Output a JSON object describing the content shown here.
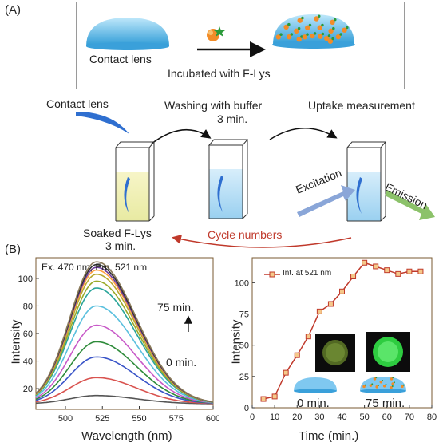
{
  "panel_a": {
    "label": "(A)",
    "contact_lens_label": "Contact lens",
    "incubated_label": "Incubated with F-Lys",
    "contact_lens_label_2": "Contact lens",
    "washing_label": "Washing with buffer",
    "washing_time": "3 min.",
    "uptake_label": "Uptake measurement",
    "soaked_label": "Soaked F-Lys",
    "soaked_time": "3 min.",
    "excitation_label": "Excitation",
    "emission_label": "Emission",
    "cycle_label": "Cycle numbers"
  },
  "panel_b": {
    "label": "(B)",
    "spectra_annotation": "Ex. 470 nm, Em. 521 nm",
    "arrow_top_label": "75 min.",
    "arrow_bottom_label": "0 min.",
    "inset_left_label": "0 min.",
    "inset_right_label": "75 min.",
    "colors": {
      "series_line": "#c0392b",
      "marker_fill": "#f5c88a",
      "glow_dark": "#5f7a28",
      "glow_bright": "#2ecc40",
      "cycle_arrow": "#c0392b"
    }
  },
  "chart_data": [
    {
      "type": "line",
      "xlabel": "Wavelength (nm)",
      "ylabel": "Intensity",
      "xlim": [
        480,
        600
      ],
      "ylim": [
        5,
        115
      ],
      "xticks": [
        500,
        525,
        550,
        575,
        600
      ],
      "yticks": [
        20,
        40,
        60,
        80,
        100
      ],
      "peak_x": 521,
      "series": [
        {
          "values_peak": 15,
          "color": "#555555"
        },
        {
          "values_peak": 28,
          "color": "#d9534f"
        },
        {
          "values_peak": 43,
          "color": "#3a55c8"
        },
        {
          "values_peak": 54,
          "color": "#2e8b3a"
        },
        {
          "values_peak": 66,
          "color": "#c85ac8"
        },
        {
          "values_peak": 80,
          "color": "#5bc0de"
        },
        {
          "values_peak": 93,
          "color": "#2aa59a"
        },
        {
          "values_peak": 98,
          "color": "#9aaa2a"
        },
        {
          "values_peak": 103,
          "color": "#b8a830"
        },
        {
          "values_peak": 106,
          "color": "#ffa040"
        },
        {
          "values_peak": 108,
          "color": "#6b3a9a"
        },
        {
          "values_peak": 110,
          "color": "#303030"
        },
        {
          "values_peak": 112,
          "color": "#8a7a5a"
        }
      ]
    },
    {
      "type": "line",
      "xlabel": "Time (min.)",
      "ylabel": "Intensity",
      "xlim": [
        0,
        80
      ],
      "ylim": [
        0,
        120
      ],
      "xticks": [
        0,
        10,
        20,
        30,
        40,
        50,
        60,
        70,
        80
      ],
      "yticks": [
        0,
        25,
        50,
        75,
        100
      ],
      "series": [
        {
          "name": "Int. at 521 nm",
          "x": [
            5,
            10,
            15,
            20,
            25,
            30,
            35,
            40,
            45,
            50,
            55,
            60,
            65,
            70,
            75
          ],
          "y": [
            7,
            9,
            28,
            42,
            57,
            77,
            83,
            93,
            105,
            116,
            113,
            110,
            107,
            109,
            109
          ]
        }
      ]
    }
  ]
}
